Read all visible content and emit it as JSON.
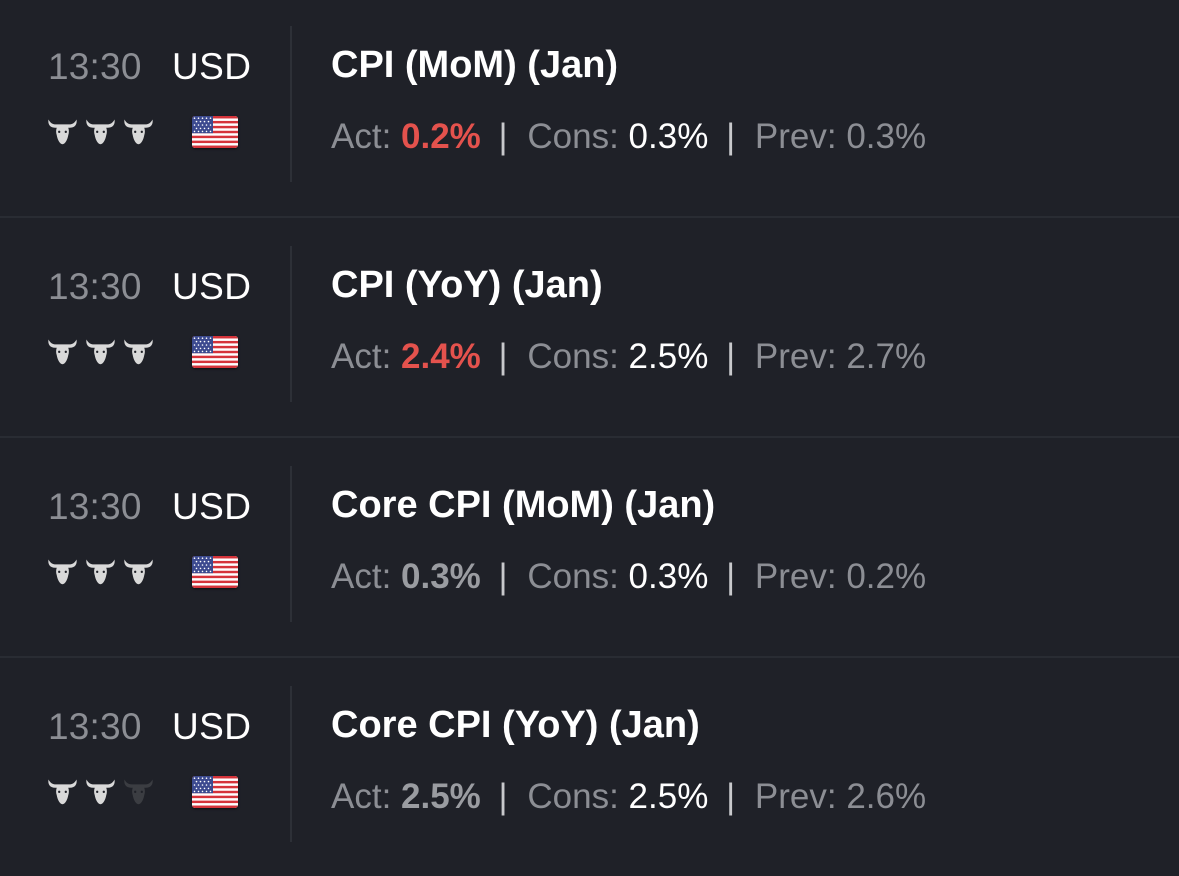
{
  "colors": {
    "background": "#1f2128",
    "divider": "#292c33",
    "act_worse": "#e4524d",
    "act_neutral": "#9a9ca1",
    "text_primary": "#ffffff",
    "text_secondary": "#8c8e94",
    "bull_active": "#d9d9d9",
    "bull_inactive": "#3b3d42"
  },
  "labels": {
    "act": "Act:",
    "cons": "Cons:",
    "prev": "Prev:",
    "sep": "|"
  },
  "events": [
    {
      "time": "13:30",
      "currency": "USD",
      "flag_icon": "us-flag-icon",
      "importance": 3,
      "title": "CPI (MoM) (Jan)",
      "actual": "0.2%",
      "actual_state": "red",
      "consensus": "0.3%",
      "previous": "0.3%"
    },
    {
      "time": "13:30",
      "currency": "USD",
      "flag_icon": "us-flag-icon",
      "importance": 3,
      "title": "CPI (YoY) (Jan)",
      "actual": "2.4%",
      "actual_state": "red",
      "consensus": "2.5%",
      "previous": "2.7%"
    },
    {
      "time": "13:30",
      "currency": "USD",
      "flag_icon": "us-flag-icon",
      "importance": 3,
      "title": "Core CPI (MoM) (Jan)",
      "actual": "0.3%",
      "actual_state": "neutral",
      "consensus": "0.3%",
      "previous": "0.2%"
    },
    {
      "time": "13:30",
      "currency": "USD",
      "flag_icon": "us-flag-icon",
      "importance": 2,
      "title": "Core CPI (YoY) (Jan)",
      "actual": "2.5%",
      "actual_state": "neutral",
      "consensus": "2.5%",
      "previous": "2.6%"
    }
  ]
}
